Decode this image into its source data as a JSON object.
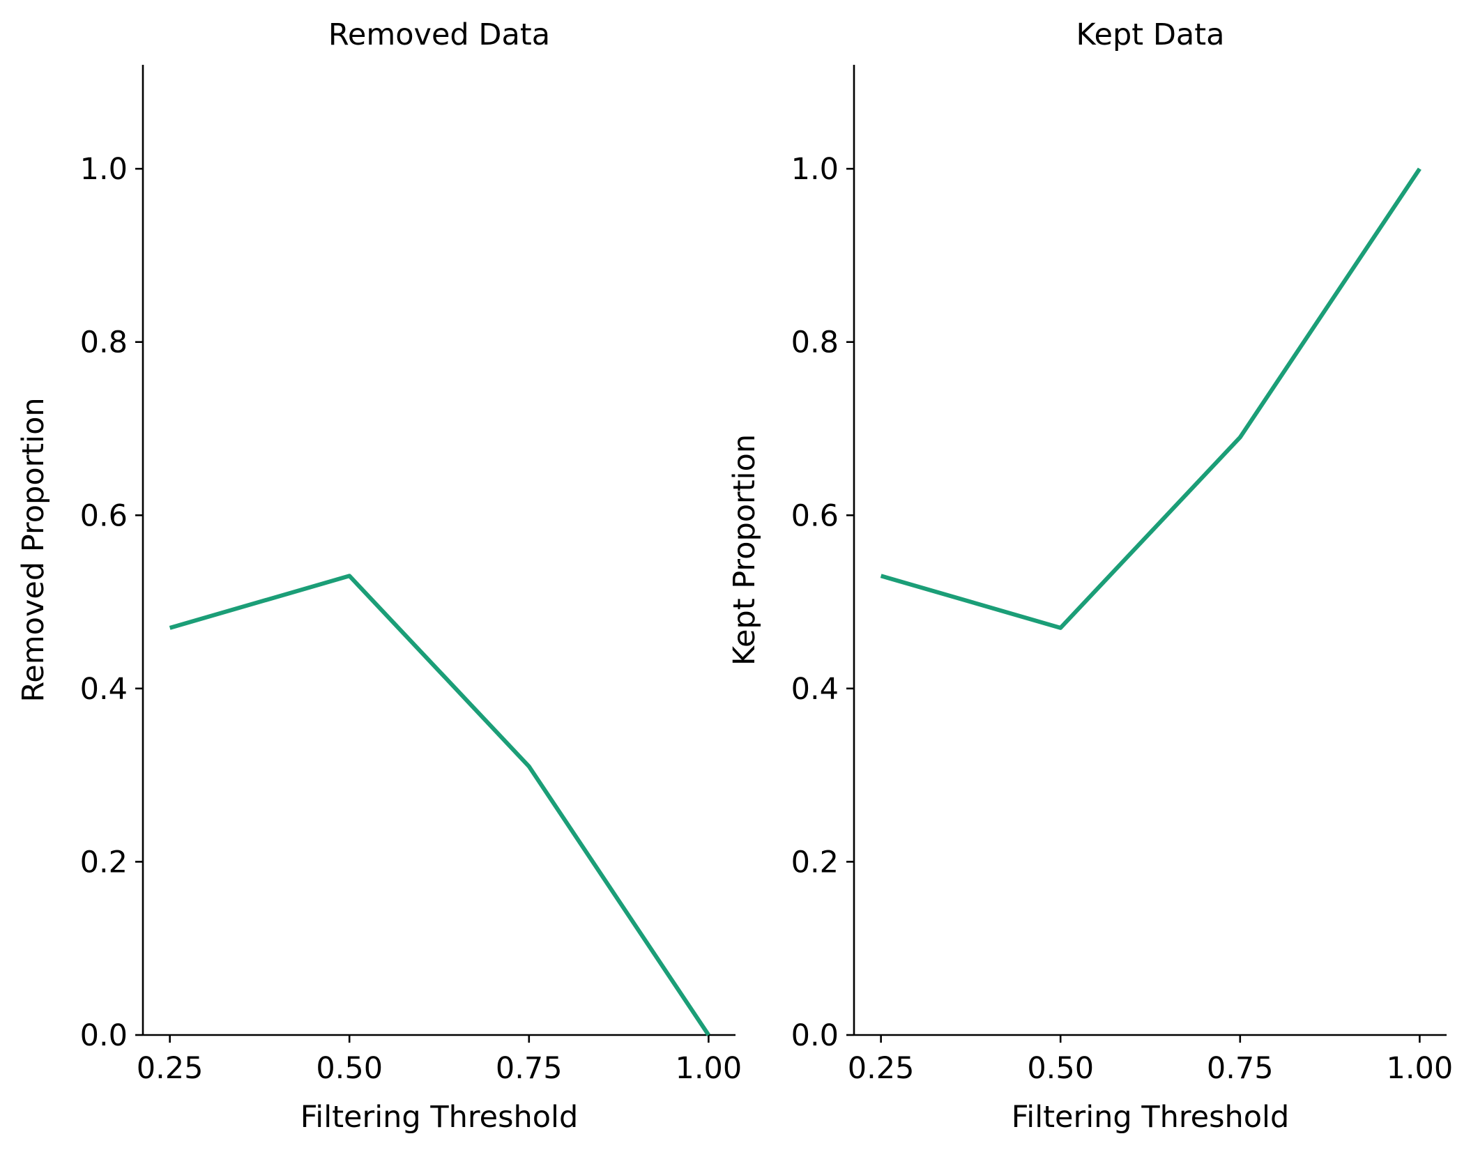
{
  "chart_data": [
    {
      "type": "line",
      "title": "Removed Data",
      "xlabel": "Filtering Threshold",
      "ylabel": "Removed Proportion",
      "x": [
        0.25,
        0.5,
        0.75,
        1.0
      ],
      "x_tick_labels": [
        "0.25",
        "0.50",
        "0.75",
        "1.00"
      ],
      "y_tick_values": [
        0.0,
        0.2,
        0.4,
        0.6,
        0.8,
        1.0
      ],
      "y_tick_labels": [
        "0.0",
        "0.2",
        "0.4",
        "0.6",
        "0.8",
        "1.0"
      ],
      "xlim": [
        0.2125,
        1.0375
      ],
      "ylim": [
        0.0,
        1.12
      ],
      "grid": false,
      "series": [
        {
          "values": [
            0.47,
            0.53,
            0.31,
            0.0
          ],
          "color": "#1b9e77"
        }
      ]
    },
    {
      "type": "line",
      "title": "Kept Data",
      "xlabel": "Filtering Threshold",
      "ylabel": "Kept Proportion",
      "x": [
        0.25,
        0.5,
        0.75,
        1.0
      ],
      "x_tick_labels": [
        "0.25",
        "0.50",
        "0.75",
        "1.00"
      ],
      "y_tick_values": [
        0.0,
        0.2,
        0.4,
        0.6,
        0.8,
        1.0
      ],
      "y_tick_labels": [
        "0.0",
        "0.2",
        "0.4",
        "0.6",
        "0.8",
        "1.0"
      ],
      "xlim": [
        0.2125,
        1.0375
      ],
      "ylim": [
        0.0,
        1.12
      ],
      "grid": false,
      "series": [
        {
          "values": [
            0.53,
            0.47,
            0.69,
            1.0
          ],
          "color": "#1b9e77"
        }
      ]
    }
  ]
}
